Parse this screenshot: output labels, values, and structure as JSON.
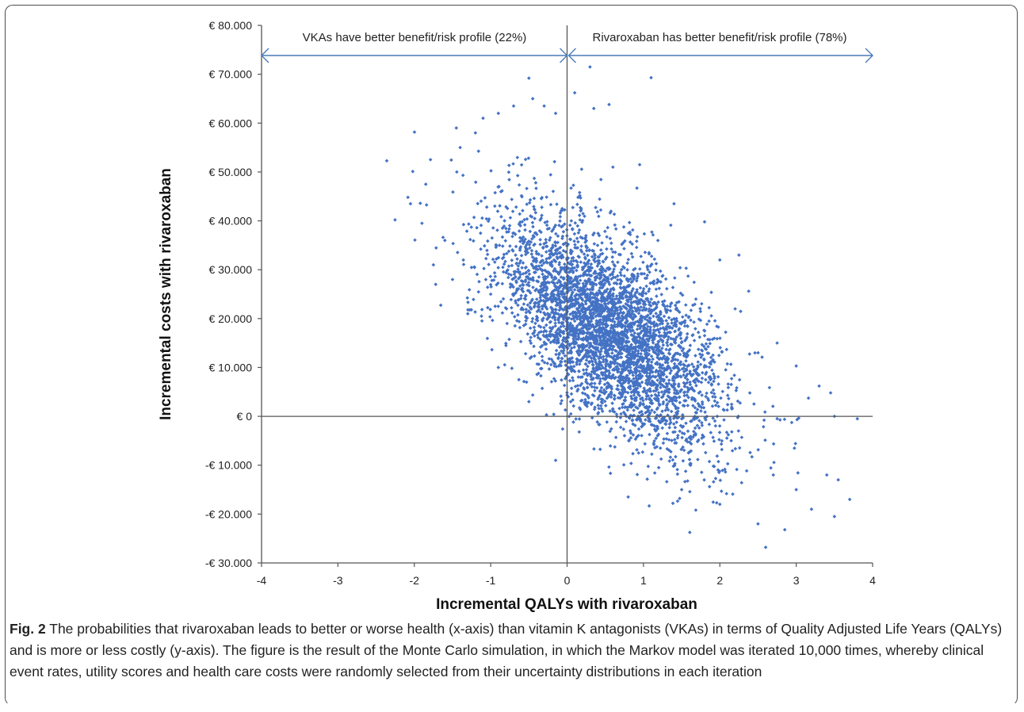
{
  "chart_data": {
    "type": "scatter",
    "title": "",
    "xlabel": "Incremental QALYs with rivaroxaban",
    "ylabel": "Incremental costs with rivaroxaban",
    "xlim": [
      -4,
      4
    ],
    "ylim": [
      -30000,
      80000
    ],
    "x_ticks": [
      -4,
      -3,
      -2,
      -1,
      0,
      1,
      2,
      3,
      4
    ],
    "x_tick_labels": [
      "-4",
      "-3",
      "-2",
      "-1",
      "0",
      "1",
      "2",
      "3",
      "4"
    ],
    "y_ticks": [
      80000,
      70000,
      60000,
      50000,
      40000,
      30000,
      20000,
      10000,
      0,
      -10000,
      -20000,
      -30000
    ],
    "y_tick_labels": [
      "€ 80.000",
      "€ 70.000",
      "€ 60.000",
      "€ 50.000",
      "€ 40.000",
      "€ 30.000",
      "€ 20.000",
      "€ 10.000",
      "€ 0",
      "-€ 10.000",
      "-€ 20.000",
      "-€ 30.000"
    ],
    "grid": false,
    "point_color": "#4472c4",
    "annotations": {
      "left": "VKAs have better benefit/risk profile (22%)",
      "right": "Rivaroxaban has better benefit/risk profile (78%)"
    },
    "series": [
      {
        "points": [
          [
            -2.05,
            43500
          ],
          [
            -1.85,
            47500
          ],
          [
            -1.75,
            31000
          ],
          [
            -1.72,
            27000
          ],
          [
            -1.9,
            39500
          ],
          [
            -1.45,
            59000
          ],
          [
            -1.4,
            55000
          ],
          [
            -1.2,
            58000
          ],
          [
            -1.1,
            61000
          ],
          [
            -0.9,
            62000
          ],
          [
            -0.7,
            63500
          ],
          [
            -0.5,
            69200
          ],
          [
            -0.45,
            65000
          ],
          [
            -0.3,
            63500
          ],
          [
            -0.15,
            62000
          ],
          [
            0.1,
            66200
          ],
          [
            0.3,
            71500
          ],
          [
            0.35,
            63000
          ],
          [
            0.55,
            63800
          ],
          [
            1.1,
            69300
          ],
          [
            0.95,
            51500
          ],
          [
            0.6,
            51000
          ],
          [
            1.4,
            43500
          ],
          [
            1.8,
            39800
          ],
          [
            2.0,
            32000
          ],
          [
            2.25,
            33000
          ],
          [
            2.2,
            22000
          ],
          [
            2.5,
            13000
          ],
          [
            2.75,
            15000
          ],
          [
            3.0,
            10300
          ],
          [
            3.3,
            6200
          ],
          [
            3.45,
            4800
          ],
          [
            3.8,
            -500
          ],
          [
            3.5,
            0
          ],
          [
            3.4,
            -12000
          ],
          [
            3.55,
            -13000
          ],
          [
            3.5,
            -20500
          ],
          [
            3.7,
            -17000
          ],
          [
            2.85,
            -23200
          ],
          [
            2.6,
            -26800
          ],
          [
            2.5,
            -22000
          ],
          [
            3.0,
            -15000
          ],
          [
            2.7,
            -12000
          ],
          [
            -0.15,
            -9000
          ],
          [
            0.8,
            -16500
          ],
          [
            1.5,
            -15000
          ],
          [
            2.0,
            -18000
          ],
          [
            1.2,
            -10500
          ],
          [
            -1.0,
            25000
          ],
          [
            -1.3,
            21000
          ],
          [
            -1.5,
            28000
          ],
          [
            -1.6,
            36000
          ],
          [
            -0.8,
            14500
          ],
          [
            -0.9,
            10000
          ],
          [
            -0.5,
            3000
          ],
          [
            0.05,
            500
          ],
          [
            3.2,
            -19000
          ]
        ]
      }
    ],
    "cloud": {
      "n": 4200,
      "seed": 20242,
      "mean_x": 0.55,
      "mean_y": 17500,
      "sd_x": 0.72,
      "sd_y": 11500,
      "correlation": -0.62
    }
  },
  "caption": {
    "lead": "Fig. 2",
    "text": "The probabilities that rivaroxaban leads to better or worse health (x-axis) than vitamin K antagonists (VKAs) in terms of Quality Adjusted Life Years (QALYs) and is more or less costly (y-axis). The figure is the result of the Monte Carlo simulation, in which the Markov model was iterated 10,000 times, whereby clinical event rates, utility scores and health care costs were randomly selected from their uncertainty distributions in each iteration"
  }
}
